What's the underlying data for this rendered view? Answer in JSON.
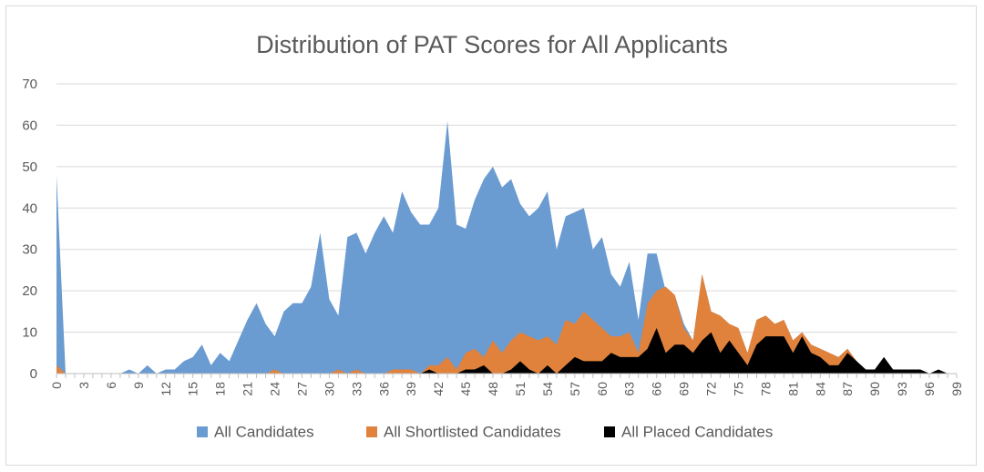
{
  "chart_data": {
    "type": "area",
    "title": "Distribution of PAT Scores for All Applicants",
    "xlabel": "",
    "ylabel": "",
    "ylim": [
      0,
      70
    ],
    "y_ticks": [
      0,
      10,
      20,
      30,
      40,
      50,
      60,
      70
    ],
    "x": [
      0,
      1,
      2,
      3,
      4,
      5,
      6,
      7,
      8,
      9,
      10,
      11,
      12,
      13,
      14,
      15,
      16,
      17,
      18,
      19,
      20,
      21,
      22,
      23,
      24,
      25,
      26,
      27,
      28,
      29,
      30,
      31,
      32,
      33,
      34,
      35,
      36,
      37,
      38,
      39,
      40,
      41,
      42,
      43,
      44,
      45,
      46,
      47,
      48,
      49,
      50,
      51,
      52,
      53,
      54,
      55,
      56,
      57,
      58,
      59,
      60,
      61,
      62,
      63,
      64,
      65,
      66,
      67,
      68,
      69,
      70,
      71,
      72,
      73,
      74,
      75,
      76,
      77,
      78,
      79,
      80,
      81,
      82,
      83,
      84,
      85,
      86,
      87,
      88,
      89,
      90,
      91,
      92,
      93,
      94,
      95,
      96,
      97,
      98,
      99
    ],
    "x_tick_labels": [
      "0",
      "3",
      "6",
      "9",
      "12",
      "15",
      "18",
      "21",
      "24",
      "27",
      "30",
      "33",
      "36",
      "39",
      "42",
      "45",
      "48",
      "51",
      "54",
      "57",
      "60",
      "63",
      "66",
      "69",
      "72",
      "75",
      "78",
      "81",
      "84",
      "87",
      "90",
      "93",
      "96",
      "99"
    ],
    "grid": true,
    "legend_position": "bottom",
    "series": [
      {
        "name": "All Candidates",
        "color": "#6a9bd1",
        "values": [
          48,
          0,
          0,
          0,
          0,
          0,
          0,
          0,
          1,
          0,
          2,
          0,
          1,
          1,
          3,
          4,
          7,
          2,
          5,
          3,
          8,
          13,
          17,
          12,
          9,
          15,
          17,
          17,
          21,
          34,
          18,
          14,
          33,
          34,
          29,
          34,
          38,
          34,
          44,
          39,
          36,
          36,
          40,
          61,
          36,
          35,
          42,
          47,
          50,
          45,
          47,
          41,
          38,
          40,
          44,
          30,
          38,
          39,
          40,
          30,
          33,
          24,
          21,
          27,
          13,
          29,
          29,
          20,
          19,
          12,
          8,
          24,
          15,
          14,
          12,
          11,
          5,
          13,
          14,
          12,
          13,
          8,
          10,
          7,
          6,
          5,
          4,
          6,
          3,
          1,
          1,
          4,
          1,
          1,
          1,
          1,
          0,
          1,
          0,
          0
        ]
      },
      {
        "name": "All Shortlisted Candidates",
        "color": "#e0823c",
        "values": [
          2,
          0,
          0,
          0,
          0,
          0,
          0,
          0,
          0,
          0,
          0,
          0,
          0,
          0,
          0,
          0,
          0,
          0,
          0,
          0,
          0,
          0,
          0,
          0,
          1,
          0,
          0,
          0,
          0,
          0,
          0,
          1,
          0,
          1,
          0,
          0,
          0,
          1,
          1,
          1,
          0,
          2,
          2,
          4,
          1,
          5,
          6,
          4,
          8,
          5,
          8,
          10,
          9,
          8,
          9,
          7,
          13,
          12,
          15,
          13,
          11,
          9,
          9,
          10,
          5,
          17,
          20,
          21,
          19,
          11,
          8,
          24,
          15,
          14,
          12,
          11,
          5,
          13,
          14,
          12,
          13,
          8,
          10,
          7,
          6,
          5,
          4,
          6,
          3,
          1,
          1,
          4,
          1,
          1,
          1,
          1,
          0,
          1,
          0,
          0
        ]
      },
      {
        "name": "All Placed Candidates",
        "color": "#000000",
        "values": [
          0,
          0,
          0,
          0,
          0,
          0,
          0,
          0,
          0,
          0,
          0,
          0,
          0,
          0,
          0,
          0,
          0,
          0,
          0,
          0,
          0,
          0,
          0,
          0,
          0,
          0,
          0,
          0,
          0,
          0,
          0,
          0,
          0,
          0,
          0,
          0,
          0,
          0,
          0,
          0,
          0,
          1,
          0,
          0,
          0,
          1,
          1,
          2,
          0,
          0,
          1,
          3,
          1,
          0,
          2,
          0,
          2,
          4,
          3,
          3,
          3,
          5,
          4,
          4,
          4,
          6,
          11,
          5,
          7,
          7,
          5,
          8,
          10,
          5,
          8,
          5,
          2,
          7,
          9,
          9,
          9,
          5,
          9,
          5,
          4,
          2,
          2,
          5,
          3,
          1,
          1,
          4,
          1,
          1,
          1,
          1,
          0,
          1,
          0,
          0
        ]
      }
    ]
  }
}
